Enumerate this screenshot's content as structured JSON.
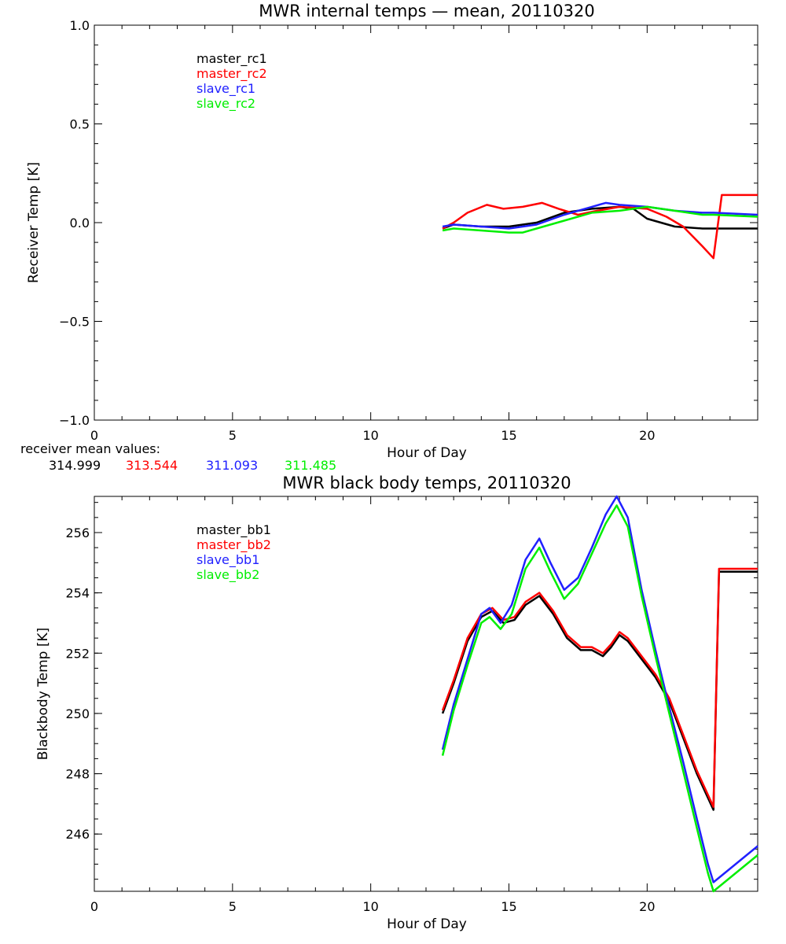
{
  "colors": {
    "black": "#000000",
    "red": "#ff0000",
    "blue": "#2020ff",
    "green": "#00ee00"
  },
  "receiver_means": {
    "label": "receiver mean values:",
    "values": [
      "314.999",
      "313.544",
      "311.093",
      "311.485"
    ]
  },
  "chart_data": [
    {
      "type": "line",
      "title": "MWR internal temps — mean, 20110320",
      "xlabel": "Hour of Day",
      "ylabel": "Receiver Temp [K]",
      "xlim": [
        0,
        24
      ],
      "ylim": [
        -1.0,
        1.0
      ],
      "xticks": [
        0,
        5,
        10,
        15,
        20
      ],
      "yticks": [
        -1.0,
        -0.5,
        0.0,
        0.5,
        1.0
      ],
      "ytick_labels": [
        "−1.0",
        "−0.5",
        "0.0",
        "0.5",
        "1.0"
      ],
      "grid": false,
      "legend_position": "top-left",
      "series": [
        {
          "name": "master_rc1",
          "color": "#000000",
          "x": [
            12.6,
            13.0,
            14.0,
            15.0,
            16.0,
            17.0,
            18.0,
            19.0,
            19.5,
            20.0,
            21.0,
            22.0,
            22.4,
            24.0
          ],
          "y": [
            -0.03,
            -0.01,
            -0.02,
            -0.02,
            0.0,
            0.05,
            0.07,
            0.08,
            0.07,
            0.02,
            -0.02,
            -0.03,
            -0.03,
            -0.03
          ]
        },
        {
          "name": "master_rc2",
          "color": "#ff0000",
          "x": [
            12.6,
            13.0,
            13.5,
            14.2,
            14.8,
            15.5,
            16.2,
            16.8,
            17.5,
            18.2,
            19.0,
            20.0,
            20.7,
            21.3,
            22.0,
            22.4,
            22.7,
            24.0
          ],
          "y": [
            -0.03,
            0.0,
            0.05,
            0.09,
            0.07,
            0.08,
            0.1,
            0.07,
            0.04,
            0.06,
            0.08,
            0.07,
            0.03,
            -0.02,
            -0.12,
            -0.18,
            0.14,
            0.14
          ]
        },
        {
          "name": "slave_rc1",
          "color": "#2020ff",
          "x": [
            12.6,
            13.0,
            14.0,
            15.0,
            16.0,
            17.0,
            18.0,
            18.5,
            19.0,
            20.0,
            21.0,
            22.0,
            22.4,
            24.0
          ],
          "y": [
            -0.02,
            -0.01,
            -0.02,
            -0.03,
            -0.01,
            0.04,
            0.08,
            0.1,
            0.09,
            0.08,
            0.06,
            0.05,
            0.05,
            0.04
          ]
        },
        {
          "name": "slave_rc2",
          "color": "#00ee00",
          "x": [
            12.6,
            13.0,
            14.0,
            15.0,
            15.5,
            16.0,
            17.0,
            18.0,
            19.0,
            20.0,
            21.0,
            22.0,
            22.4,
            24.0
          ],
          "y": [
            -0.04,
            -0.03,
            -0.04,
            -0.05,
            -0.05,
            -0.03,
            0.01,
            0.05,
            0.06,
            0.08,
            0.06,
            0.04,
            0.04,
            0.03
          ]
        }
      ]
    },
    {
      "type": "line",
      "title": "MWR black body temps, 20110320",
      "xlabel": "Hour of Day",
      "ylabel": "Blackbody Temp [K]",
      "xlim": [
        0,
        24
      ],
      "ylim": [
        244.1,
        257.2
      ],
      "xticks": [
        0,
        5,
        10,
        15,
        20
      ],
      "yticks": [
        246,
        248,
        250,
        252,
        254,
        256
      ],
      "ytick_labels": [
        "246",
        "248",
        "250",
        "252",
        "254",
        "256"
      ],
      "grid": false,
      "legend_position": "top-left",
      "series": [
        {
          "name": "master_bb1",
          "color": "#000000",
          "x": [
            12.6,
            13.0,
            13.5,
            14.0,
            14.4,
            14.8,
            15.2,
            15.6,
            16.1,
            16.6,
            17.1,
            17.6,
            18.0,
            18.4,
            18.7,
            19.0,
            19.3,
            19.8,
            20.3,
            20.8,
            21.3,
            21.8,
            22.2,
            22.4,
            22.6,
            24.0
          ],
          "y": [
            250.0,
            251.0,
            252.4,
            253.2,
            253.4,
            253.0,
            253.1,
            253.6,
            253.9,
            253.3,
            252.5,
            252.1,
            252.1,
            251.9,
            252.2,
            252.6,
            252.4,
            251.8,
            251.2,
            250.4,
            249.2,
            248.0,
            247.2,
            246.8,
            254.7,
            254.7
          ]
        },
        {
          "name": "master_bb2",
          "color": "#ff0000",
          "x": [
            12.6,
            13.0,
            13.5,
            14.0,
            14.4,
            14.8,
            15.2,
            15.6,
            16.1,
            16.6,
            17.1,
            17.6,
            18.0,
            18.4,
            18.7,
            19.0,
            19.3,
            19.8,
            20.3,
            20.8,
            21.3,
            21.8,
            22.2,
            22.4,
            22.6,
            24.0
          ],
          "y": [
            250.1,
            251.1,
            252.5,
            253.3,
            253.5,
            253.1,
            253.2,
            253.7,
            254.0,
            253.4,
            252.6,
            252.2,
            252.2,
            252.0,
            252.3,
            252.7,
            252.5,
            251.9,
            251.3,
            250.5,
            249.3,
            248.1,
            247.3,
            246.9,
            254.8,
            254.8
          ]
        },
        {
          "name": "slave_bb1",
          "color": "#2020ff",
          "x": [
            12.6,
            13.0,
            13.5,
            14.0,
            14.3,
            14.7,
            15.1,
            15.6,
            16.1,
            16.5,
            17.0,
            17.5,
            18.0,
            18.5,
            18.9,
            19.3,
            19.8,
            20.3,
            20.8,
            21.3,
            21.8,
            22.2,
            22.4,
            24.0
          ],
          "y": [
            248.8,
            250.3,
            251.8,
            253.3,
            253.5,
            253.0,
            253.6,
            255.1,
            255.8,
            255.0,
            254.1,
            254.5,
            255.5,
            256.6,
            257.2,
            256.5,
            254.1,
            252.1,
            250.2,
            248.4,
            246.5,
            245.0,
            244.4,
            245.6
          ]
        },
        {
          "name": "slave_bb2",
          "color": "#00ee00",
          "x": [
            12.6,
            13.0,
            13.5,
            14.0,
            14.3,
            14.7,
            15.1,
            15.6,
            16.1,
            16.5,
            17.0,
            17.5,
            18.0,
            18.5,
            18.9,
            19.3,
            19.8,
            20.3,
            20.8,
            21.3,
            21.8,
            22.2,
            22.4,
            24.0
          ],
          "y": [
            248.6,
            250.1,
            251.6,
            253.0,
            253.2,
            252.8,
            253.3,
            254.8,
            255.5,
            254.7,
            253.8,
            254.3,
            255.3,
            256.3,
            256.9,
            256.2,
            253.9,
            251.9,
            250.0,
            248.1,
            246.2,
            244.7,
            244.1,
            245.3
          ]
        }
      ]
    }
  ]
}
